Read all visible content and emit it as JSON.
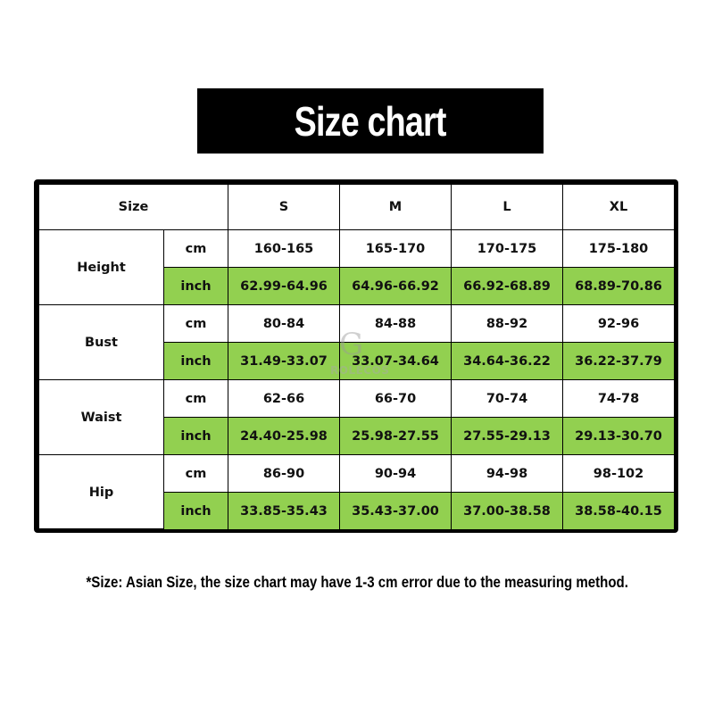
{
  "title": "Size chart",
  "watermark": "ROLECOS",
  "colors": {
    "inch_row_bg": "#92d050",
    "title_bg": "#000000"
  },
  "table": {
    "header": {
      "label": "Size",
      "sizes": [
        "S",
        "M",
        "L",
        "XL"
      ]
    },
    "rows": [
      {
        "measure": "Height",
        "cm_label": "cm",
        "cm": [
          "160-165",
          "165-170",
          "170-175",
          "175-180"
        ],
        "inch_label": "inch",
        "inch": [
          "62.99-64.96",
          "64.96-66.92",
          "66.92-68.89",
          "68.89-70.86"
        ]
      },
      {
        "measure": "Bust",
        "cm_label": "cm",
        "cm": [
          "80-84",
          "84-88",
          "88-92",
          "92-96"
        ],
        "inch_label": "inch",
        "inch": [
          "31.49-33.07",
          "33.07-34.64",
          "34.64-36.22",
          "36.22-37.79"
        ]
      },
      {
        "measure": "Waist",
        "cm_label": "cm",
        "cm": [
          "62-66",
          "66-70",
          "70-74",
          "74-78"
        ],
        "inch_label": "inch",
        "inch": [
          "24.40-25.98",
          "25.98-27.55",
          "27.55-29.13",
          "29.13-30.70"
        ]
      },
      {
        "measure": "Hip",
        "cm_label": "cm",
        "cm": [
          "86-90",
          "90-94",
          "94-98",
          "98-102"
        ],
        "inch_label": "inch",
        "inch": [
          "33.85-35.43",
          "35.43-37.00",
          "37.00-38.58",
          "38.58-40.15"
        ]
      }
    ]
  },
  "footnote": "*Size: Asian Size, the size chart may have 1-3 cm error due to the measuring method."
}
